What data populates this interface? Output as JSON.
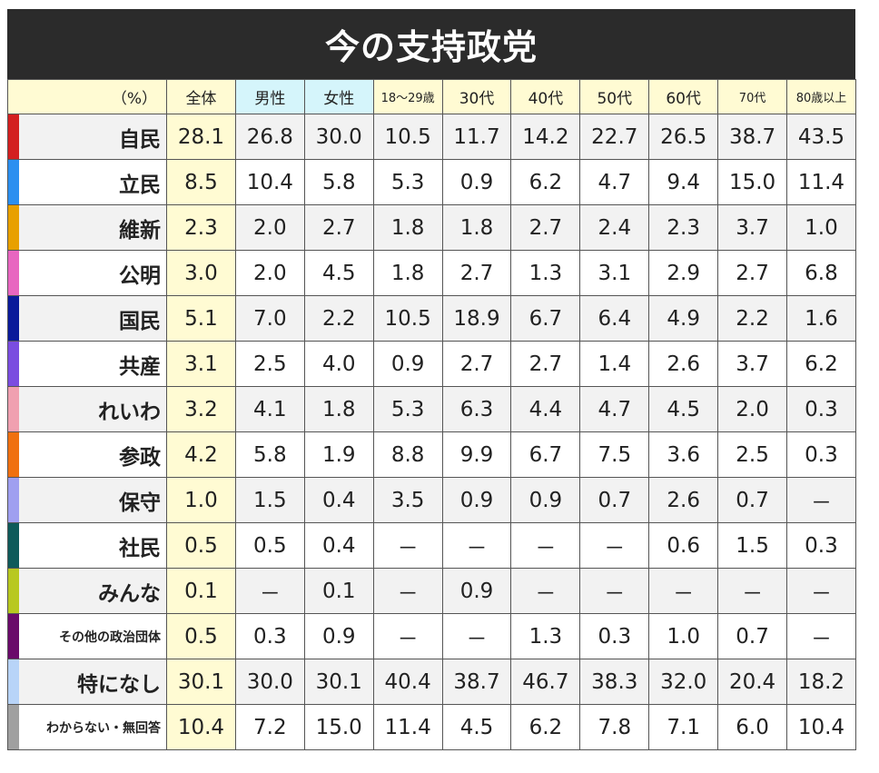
{
  "title": "今の支持政党",
  "header": {
    "unit": "（%）",
    "columns": [
      "全体",
      "男性",
      "女性",
      "18〜29歳",
      "30代",
      "40代",
      "50代",
      "60代",
      "70代",
      "80歳以上"
    ]
  },
  "rows": [
    {
      "party": "自民",
      "color": "#d32020",
      "values": [
        "28.1",
        "26.8",
        "30.0",
        "10.5",
        "11.7",
        "14.2",
        "22.7",
        "26.5",
        "38.7",
        "43.5"
      ]
    },
    {
      "party": "立民",
      "color": "#2b8ff0",
      "values": [
        "8.5",
        "10.4",
        "5.8",
        "5.3",
        "0.9",
        "6.2",
        "4.7",
        "9.4",
        "15.0",
        "11.4"
      ]
    },
    {
      "party": "維新",
      "color": "#e8a000",
      "values": [
        "2.3",
        "2.0",
        "2.7",
        "1.8",
        "1.8",
        "2.7",
        "2.4",
        "2.3",
        "3.7",
        "1.0"
      ]
    },
    {
      "party": "公明",
      "color": "#e866c0",
      "values": [
        "3.0",
        "2.0",
        "4.5",
        "1.8",
        "2.7",
        "1.3",
        "3.1",
        "2.9",
        "2.7",
        "6.8"
      ]
    },
    {
      "party": "国民",
      "color": "#0a1a9a",
      "values": [
        "5.1",
        "7.0",
        "2.2",
        "10.5",
        "18.9",
        "6.7",
        "6.4",
        "4.9",
        "2.2",
        "1.6"
      ]
    },
    {
      "party": "共産",
      "color": "#7a4de0",
      "values": [
        "3.1",
        "2.5",
        "4.0",
        "0.9",
        "2.7",
        "2.7",
        "1.4",
        "2.6",
        "3.7",
        "6.2"
      ]
    },
    {
      "party": "れいわ",
      "color": "#f0a0b0",
      "values": [
        "3.2",
        "4.1",
        "1.8",
        "5.3",
        "6.3",
        "4.4",
        "4.7",
        "4.5",
        "2.0",
        "0.3"
      ]
    },
    {
      "party": "参政",
      "color": "#f07010",
      "values": [
        "4.2",
        "5.8",
        "1.9",
        "8.8",
        "9.9",
        "6.7",
        "7.5",
        "3.6",
        "2.5",
        "0.3"
      ]
    },
    {
      "party": "保守",
      "color": "#9f9ff0",
      "values": [
        "1.0",
        "1.5",
        "0.4",
        "3.5",
        "0.9",
        "0.9",
        "0.7",
        "2.6",
        "0.7",
        "－"
      ]
    },
    {
      "party": "社民",
      "color": "#0e5a5a",
      "values": [
        "0.5",
        "0.5",
        "0.4",
        "－",
        "－",
        "－",
        "－",
        "0.6",
        "1.5",
        "0.3"
      ]
    },
    {
      "party": "みんな",
      "color": "#b8c820",
      "values": [
        "0.1",
        "－",
        "0.1",
        "－",
        "0.9",
        "－",
        "－",
        "－",
        "－",
        "－"
      ]
    },
    {
      "party": "その他の政治団体",
      "color": "#6a0a6a",
      "values": [
        "0.5",
        "0.3",
        "0.9",
        "－",
        "－",
        "1.3",
        "0.3",
        "1.0",
        "0.7",
        "－"
      ]
    },
    {
      "party": "特になし",
      "color": "#b8d4f8",
      "values": [
        "30.1",
        "30.0",
        "30.1",
        "40.4",
        "38.7",
        "46.7",
        "38.3",
        "32.0",
        "20.4",
        "18.2"
      ]
    },
    {
      "party": "わからない・無回答",
      "color": "#a0a0a0",
      "values": [
        "10.4",
        "7.2",
        "15.0",
        "11.4",
        "4.5",
        "6.2",
        "7.8",
        "7.1",
        "6.0",
        "10.4"
      ]
    }
  ]
}
